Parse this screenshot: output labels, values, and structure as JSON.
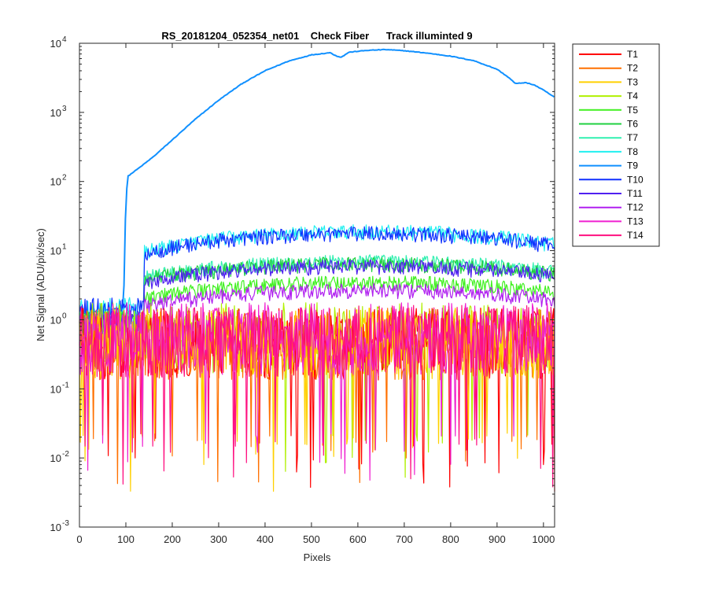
{
  "chart_data": {
    "type": "line",
    "title": "RS_20181204_052354_net01    Check Fiber      Track illuminted 9",
    "xlabel": "Pixels",
    "ylabel": "Net Signal (ADU/pix/sec)",
    "xlim": [
      0,
      1024
    ],
    "ylim": [
      0.001,
      10000
    ],
    "yscale": "log",
    "x_ticks": [
      0,
      100,
      200,
      300,
      400,
      500,
      600,
      700,
      800,
      900,
      1000
    ],
    "y_ticks": [
      {
        "value": 0.001,
        "base": "10",
        "exp": "-3"
      },
      {
        "value": 0.01,
        "base": "10",
        "exp": "-2"
      },
      {
        "value": 0.1,
        "base": "10",
        "exp": "-1"
      },
      {
        "value": 1,
        "base": "10",
        "exp": "0"
      },
      {
        "value": 10,
        "base": "10",
        "exp": "1"
      },
      {
        "value": 100,
        "base": "10",
        "exp": "2"
      },
      {
        "value": 1000,
        "base": "10",
        "exp": "3"
      },
      {
        "value": 10000,
        "base": "10",
        "exp": "4"
      }
    ],
    "grid": false,
    "legend_position": "outside-right",
    "series": [
      {
        "name": "T1",
        "color": "#ff0000",
        "level": "noise",
        "peak": 0.5
      },
      {
        "name": "T2",
        "color": "#ff7000",
        "level": "noise",
        "peak": 0.5
      },
      {
        "name": "T3",
        "color": "#ffd000",
        "level": "noise",
        "peak": 0.5
      },
      {
        "name": "T4",
        "color": "#b0f000",
        "level": "noise",
        "peak": 0.6
      },
      {
        "name": "T5",
        "color": "#40f020",
        "level": "band",
        "peak": 3.5
      },
      {
        "name": "T6",
        "color": "#20d040",
        "level": "band",
        "peak": 6.5
      },
      {
        "name": "T7",
        "color": "#30f0b0",
        "level": "band",
        "peak": 7
      },
      {
        "name": "T8",
        "color": "#20f0f0",
        "level": "band",
        "peak": 19
      },
      {
        "name": "T9",
        "color": "#1090ff",
        "level": "lit",
        "peak": 8000
      },
      {
        "name": "T10",
        "color": "#1030ff",
        "level": "band",
        "peak": 18
      },
      {
        "name": "T11",
        "color": "#5020f0",
        "level": "band",
        "peak": 6
      },
      {
        "name": "T12",
        "color": "#b020f0",
        "level": "band",
        "peak": 2.7
      },
      {
        "name": "T13",
        "color": "#f020d0",
        "level": "noise",
        "peak": 0.6
      },
      {
        "name": "T14",
        "color": "#ff1080",
        "level": "noise",
        "peak": 0.55
      }
    ],
    "lit_track_points": [
      [
        0,
        1.2
      ],
      [
        95,
        1.5
      ],
      [
        100,
        60
      ],
      [
        105,
        120
      ],
      [
        130,
        160
      ],
      [
        160,
        230
      ],
      [
        200,
        400
      ],
      [
        250,
        800
      ],
      [
        300,
        1500
      ],
      [
        350,
        2600
      ],
      [
        400,
        4000
      ],
      [
        450,
        5500
      ],
      [
        500,
        6800
      ],
      [
        540,
        7300
      ],
      [
        555,
        6500
      ],
      [
        565,
        6300
      ],
      [
        580,
        7400
      ],
      [
        620,
        7900
      ],
      [
        660,
        8100
      ],
      [
        700,
        7800
      ],
      [
        750,
        7200
      ],
      [
        800,
        6500
      ],
      [
        850,
        5600
      ],
      [
        900,
        4200
      ],
      [
        925,
        3200
      ],
      [
        940,
        2600
      ],
      [
        960,
        2700
      ],
      [
        980,
        2500
      ],
      [
        1000,
        2100
      ],
      [
        1024,
        1650
      ]
    ]
  }
}
